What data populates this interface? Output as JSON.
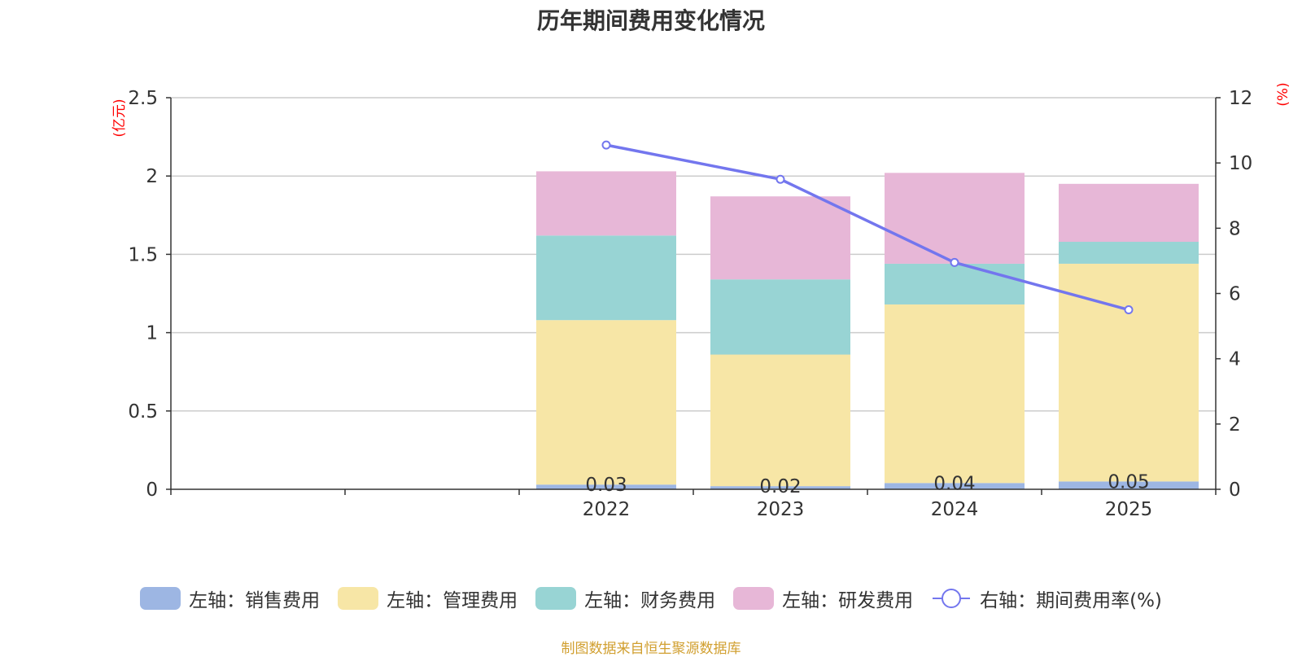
{
  "title": "历年期间费用变化情况",
  "source_note": "制图数据来自恒生聚源数据库",
  "colors": {
    "sales": "#9DB6E3",
    "admin": "#F7E6A6",
    "finance": "#98D4D4",
    "rd": "#E7B7D7",
    "rate": "#7376EE",
    "axis_unit": "#ff0000",
    "source": "#D19F2F",
    "grid": "#cccccc",
    "text": "#333333"
  },
  "chart_data": {
    "type": "bar",
    "stacked": true,
    "title": "历年期间费用变化情况",
    "categories": [
      "",
      "",
      "2022",
      "2023",
      "2024",
      "2025"
    ],
    "left_axis": {
      "unit_label": "(亿元)",
      "ylim": [
        0,
        2.5
      ],
      "ticks": [
        "0",
        "0.5",
        "1",
        "1.5",
        "2",
        "2.5"
      ]
    },
    "right_axis": {
      "unit_label": "(%)",
      "ylim": [
        0,
        12
      ],
      "ticks": [
        "0",
        "2",
        "4",
        "6",
        "8",
        "10",
        "12"
      ]
    },
    "series": [
      {
        "key": "sales",
        "name": "左轴：销售费用",
        "axis": "left",
        "values": [
          null,
          null,
          0.03,
          0.02,
          0.04,
          0.05
        ],
        "data_labels": [
          "",
          "",
          "0.03",
          "0.02",
          "0.04",
          "0.05"
        ]
      },
      {
        "key": "admin",
        "name": "左轴：管理费用",
        "axis": "left",
        "values": [
          null,
          null,
          1.05,
          0.84,
          1.14,
          1.39
        ]
      },
      {
        "key": "finance",
        "name": "左轴：财务费用",
        "axis": "left",
        "values": [
          null,
          null,
          0.54,
          0.48,
          0.26,
          0.14
        ]
      },
      {
        "key": "rd",
        "name": "左轴：研发费用",
        "axis": "left",
        "values": [
          null,
          null,
          0.41,
          0.53,
          0.58,
          0.37
        ]
      },
      {
        "key": "rate",
        "name": "右轴：期间费用率(%)",
        "axis": "right",
        "type": "line",
        "values": [
          null,
          null,
          10.55,
          9.5,
          6.95,
          5.5
        ]
      }
    ],
    "grid": true,
    "legend_position": "bottom"
  }
}
